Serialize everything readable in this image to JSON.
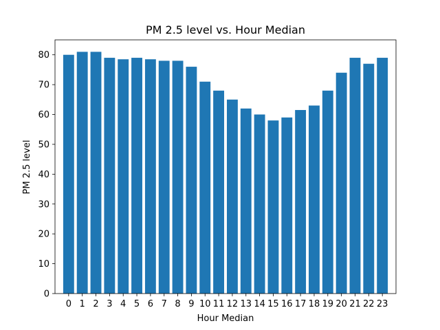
{
  "chart_data": {
    "type": "bar",
    "title": "PM 2.5 level vs. Hour Median",
    "xlabel": "Hour Median",
    "ylabel": "PM 2.5 level",
    "categories": [
      "0",
      "1",
      "2",
      "3",
      "4",
      "5",
      "6",
      "7",
      "8",
      "9",
      "10",
      "11",
      "12",
      "13",
      "14",
      "15",
      "16",
      "17",
      "18",
      "19",
      "20",
      "21",
      "22",
      "23"
    ],
    "values": [
      80,
      81,
      81,
      79,
      78.5,
      79,
      78.5,
      78,
      78,
      76,
      71,
      68,
      65,
      62,
      60,
      58,
      59,
      61.5,
      63,
      68,
      74,
      79,
      77,
      79
    ],
    "ylim": [
      0,
      85
    ],
    "yticks": [
      0,
      10,
      20,
      30,
      40,
      50,
      60,
      70,
      80
    ],
    "grid": false,
    "bar_color": "#1f77b4"
  }
}
